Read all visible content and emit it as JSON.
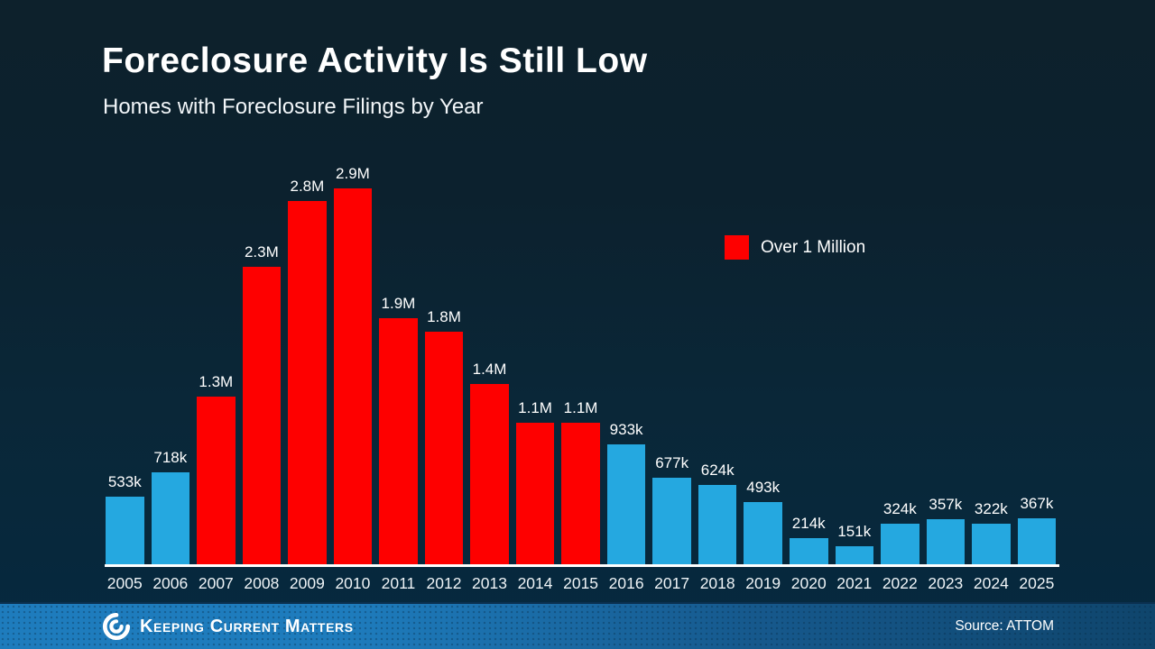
{
  "title": "Foreclosure Activity Is Still Low",
  "subtitle": "Homes with Foreclosure Filings by Year",
  "legend": {
    "label": "Over 1 Million",
    "color": "#fe0000"
  },
  "footer": {
    "brand": "Keeping Current Matters",
    "source": "Source: ATTOM"
  },
  "chart_data": {
    "type": "bar",
    "title": "Foreclosure Activity Is Still Low",
    "subtitle": "Homes with Foreclosure Filings by Year",
    "categories": [
      "2005",
      "2006",
      "2007",
      "2008",
      "2009",
      "2010",
      "2011",
      "2012",
      "2013",
      "2014",
      "2015",
      "2016",
      "2017",
      "2018",
      "2019",
      "2020",
      "2021",
      "2022",
      "2023",
      "2024",
      "2025"
    ],
    "values_thousands": [
      533,
      718,
      1300,
      2300,
      2800,
      2900,
      1900,
      1800,
      1400,
      1100,
      1100,
      933,
      677,
      624,
      493,
      214,
      151,
      324,
      357,
      322,
      367
    ],
    "value_labels": [
      "533k",
      "718k",
      "1.3M",
      "2.3M",
      "2.8M",
      "2.9M",
      "1.9M",
      "1.8M",
      "1.4M",
      "1.1M",
      "1.1M",
      "933k",
      "677k",
      "624k",
      "493k",
      "214k",
      "151k",
      "324k",
      "357k",
      "322k",
      "367k"
    ],
    "over_one_million": [
      false,
      false,
      true,
      true,
      true,
      true,
      true,
      true,
      true,
      true,
      true,
      false,
      false,
      false,
      false,
      false,
      false,
      false,
      false,
      false,
      false
    ],
    "bar_color_default": "#25a8e0",
    "bar_color_highlight": "#fe0000",
    "legend_entries": [
      {
        "label": "Over 1 Million",
        "color": "#fe0000"
      }
    ],
    "legend_position": "right-upper",
    "xlabel": "",
    "ylabel": "",
    "ylim_thousands": [
      0,
      2900
    ],
    "grid": false,
    "source": "Source: ATTOM"
  }
}
